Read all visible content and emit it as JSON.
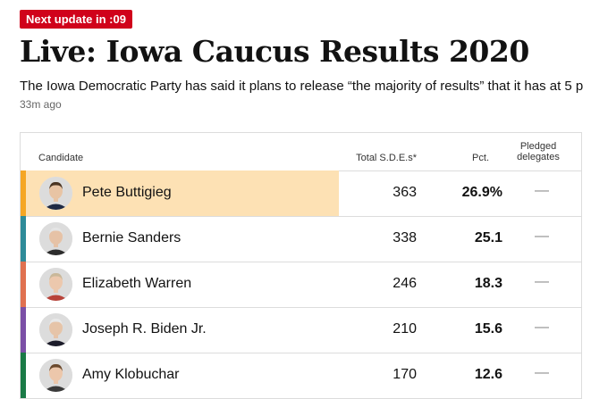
{
  "badge": "Next update in :09",
  "headline": "Live: Iowa Caucus Results 2020",
  "summary": "The Iowa Democratic Party has said it plans to release “the majority of results” that it has at 5 p",
  "timestamp": "33m ago",
  "table": {
    "headers": {
      "candidate": "Candidate",
      "sde": "Total S.D.E.s*",
      "pct": "Pct.",
      "delegates_line1": "Pledged",
      "delegates_line2": "delegates"
    },
    "rows": [
      {
        "name": "Pete Buttigieg",
        "sde": "363",
        "pct": "26.9%",
        "delegates": "—",
        "color": "#f5a623",
        "leader": true,
        "skin": "#e8c4a4",
        "hair": "#4a3422",
        "suit": "#1f2a44"
      },
      {
        "name": "Bernie Sanders",
        "sde": "338",
        "pct": "25.1",
        "delegates": "—",
        "color": "#2e8b99",
        "leader": false,
        "skin": "#e6c2a6",
        "hair": "#e4e4e4",
        "suit": "#2c2c2c"
      },
      {
        "name": "Elizabeth Warren",
        "sde": "246",
        "pct": "18.3",
        "delegates": "—",
        "color": "#e07150",
        "leader": false,
        "skin": "#ecc8ad",
        "hair": "#c9b89a",
        "suit": "#b8433a"
      },
      {
        "name": "Joseph R. Biden Jr.",
        "sde": "210",
        "pct": "15.6",
        "delegates": "—",
        "color": "#7b4fa6",
        "leader": false,
        "skin": "#e6c4a8",
        "hair": "#e8e8e8",
        "suit": "#1c1c2a"
      },
      {
        "name": "Amy Klobuchar",
        "sde": "170",
        "pct": "12.6",
        "delegates": "—",
        "color": "#1a7a46",
        "leader": false,
        "skin": "#ecc7ab",
        "hair": "#6b4a2e",
        "suit": "#3a3a3a"
      }
    ]
  }
}
